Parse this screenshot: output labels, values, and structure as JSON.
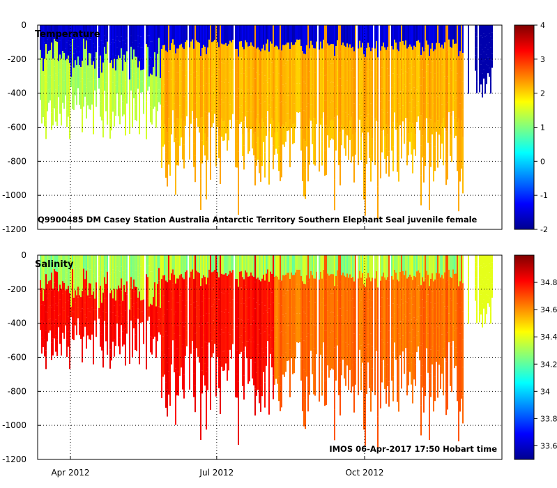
{
  "chart_data": [
    {
      "type": "heatmap",
      "title": "Temperature",
      "annotation": "Q9900485 DM Casey Station Australia Antarctic Territory Southern Elephant Seal juvenile female",
      "x_ticks": [
        "Apr 2012",
        "Jul 2012",
        "Oct 2012"
      ],
      "ylim": [
        -1200,
        0
      ],
      "y_ticks": [
        0,
        -200,
        -400,
        -600,
        -800,
        -1000,
        -1200
      ],
      "colorbar": {
        "min": -2,
        "max": 4,
        "ticks": [
          -2,
          -1,
          0,
          1,
          2,
          3,
          4
        ]
      },
      "grid": true,
      "depth_structure": {
        "surface_layer_value": -1.8,
        "deep_value_early": 1.0,
        "deep_value_winter": 2.2,
        "max_dive_depth": -1150
      }
    },
    {
      "type": "heatmap",
      "title": "Salinity",
      "annotation": "IMOS 06-Apr-2017 17:50 Hobart time",
      "x_ticks": [
        "Apr 2012",
        "Jul 2012",
        "Oct 2012"
      ],
      "ylim": [
        -1200,
        0
      ],
      "y_ticks": [
        0,
        -200,
        -400,
        -600,
        -800,
        -1000,
        -1200
      ],
      "colorbar": {
        "min": 33.5,
        "max": 35.0,
        "ticks": [
          33.6,
          33.8,
          34,
          34.2,
          34.4,
          34.6,
          34.8
        ]
      },
      "grid": true,
      "depth_structure": {
        "surface_layer_value": 34.3,
        "deep_value_early": 34.8,
        "deep_value_late": 34.65,
        "max_dive_depth": -1150
      }
    }
  ]
}
